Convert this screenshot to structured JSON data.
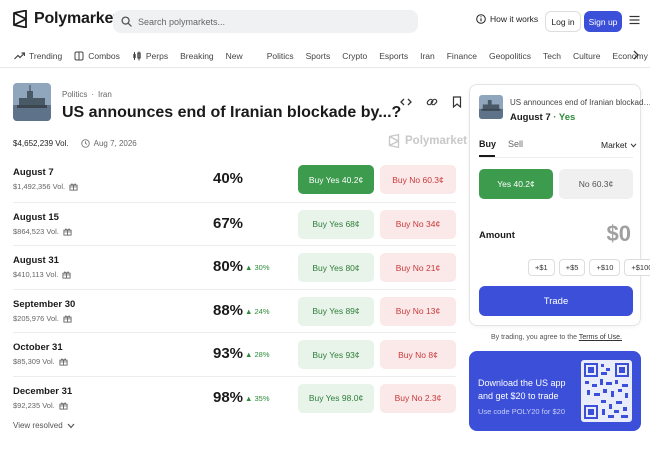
{
  "header": {
    "brand": "Polymarket",
    "search_placeholder": "Search polymarkets...",
    "how_it_works": "How it works",
    "login": "Log in",
    "signup": "Sign up"
  },
  "nav": {
    "primary": [
      "Trending",
      "Combos",
      "Perps",
      "Breaking",
      "New"
    ],
    "categories": [
      "Politics",
      "Sports",
      "Crypto",
      "Esports",
      "Iran",
      "Finance",
      "Geopolitics",
      "Tech",
      "Culture",
      "Economy"
    ]
  },
  "market": {
    "breadcrumb": [
      "Politics",
      "Iran"
    ],
    "breadcrumb_sep": "·",
    "title": "US announces end of Iranian blockade by...?",
    "volume": "$4,652,239 Vol.",
    "end_date": "Aug 7, 2026",
    "watermark": "Polymarket"
  },
  "outcomes": [
    {
      "label": "August 7",
      "volume": "$1,492,356 Vol.",
      "percent": "40%",
      "change": "",
      "yes": "Buy Yes 40.2¢",
      "no": "Buy No 60.3¢",
      "selected": true
    },
    {
      "label": "August 15",
      "volume": "$864,523 Vol.",
      "percent": "67%",
      "change": "",
      "yes": "Buy Yes 68¢",
      "no": "Buy No 34¢",
      "selected": false
    },
    {
      "label": "August 31",
      "volume": "$410,113 Vol.",
      "percent": "80%",
      "change": "▲ 30%",
      "yes": "Buy Yes 80¢",
      "no": "Buy No 21¢",
      "selected": false
    },
    {
      "label": "September 30",
      "volume": "$205,976 Vol.",
      "percent": "88%",
      "change": "▲ 24%",
      "yes": "Buy Yes 89¢",
      "no": "Buy No 13¢",
      "selected": false
    },
    {
      "label": "October 31",
      "volume": "$85,309 Vol.",
      "percent": "93%",
      "change": "▲ 28%",
      "yes": "Buy Yes 93¢",
      "no": "Buy No 8¢",
      "selected": false
    },
    {
      "label": "December 31",
      "volume": "$92,235 Vol.",
      "percent": "98%",
      "change": "▲ 35%",
      "yes": "Buy Yes 98.0¢",
      "no": "Buy No 2.3¢",
      "selected": false
    }
  ],
  "view_resolved": "View resolved",
  "trade_panel": {
    "title": "US announces end of Iranian blockade by...?",
    "title_display": "US announces end of Iranian blockad",
    "outcome": "August 7",
    "side": "Yes",
    "tab_buy": "Buy",
    "tab_sell": "Sell",
    "order_type": "Market",
    "yes_button": "Yes 40.2¢",
    "no_button": "No 60.3¢",
    "amount_label": "Amount",
    "amount_value": "$0",
    "quick_amounts": [
      "+$1",
      "+$5",
      "+$10",
      "+$100"
    ],
    "trade_button": "Trade"
  },
  "terms": {
    "prefix": "By trading, you agree to the",
    "link": "Terms of Use."
  },
  "promo": {
    "headline": "Download the US app and get $20 to trade",
    "code_text": "Use code POLY20 for $20"
  },
  "colors": {
    "accent": "#3b4fd8",
    "yes": "#3c9b4c",
    "yes_light": "#e8f4ea",
    "no_light": "#fbe9ea",
    "no_text": "#c83a3a",
    "up": "#2e8b3a"
  }
}
